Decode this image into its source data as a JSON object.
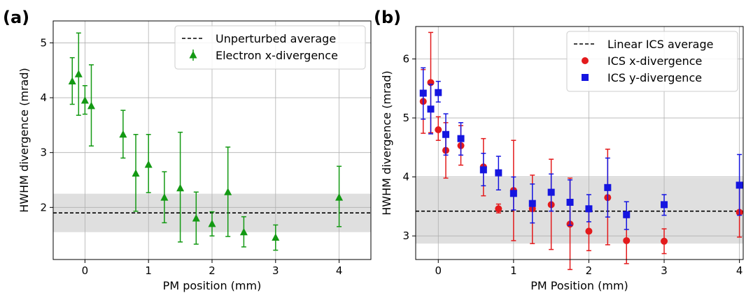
{
  "chart_data": [
    {
      "type": "scatter",
      "panel_label": "(a)",
      "xlabel": "PM position (mm)",
      "ylabel": "HWHM divergence (mrad)",
      "xlim": [
        -0.5,
        4.5
      ],
      "ylim": [
        1.05,
        5.4
      ],
      "xticks": [
        0,
        1,
        2,
        3,
        4
      ],
      "yticks": [
        2,
        3,
        4,
        5
      ],
      "grid": true,
      "legend_position": "top-right",
      "reference_line": {
        "name": "Unperturbed average",
        "y": 1.9,
        "band": [
          1.55,
          2.25
        ],
        "style": "dashed",
        "color": "#000000"
      },
      "series": [
        {
          "name": "Electron x-divergence",
          "marker": "triangle",
          "color": "#139913",
          "x": [
            -0.2,
            -0.1,
            0.0,
            0.1,
            0.6,
            0.8,
            1.0,
            1.25,
            1.5,
            1.75,
            2.0,
            2.25,
            2.5,
            3.0,
            4.0
          ],
          "y": [
            4.3,
            4.43,
            3.95,
            3.85,
            3.33,
            2.62,
            2.78,
            2.18,
            2.35,
            1.8,
            1.7,
            2.28,
            1.55,
            1.45,
            2.18
          ],
          "err_low": [
            3.88,
            3.68,
            3.7,
            3.12,
            2.9,
            1.93,
            2.27,
            1.72,
            1.37,
            1.33,
            1.48,
            1.47,
            1.28,
            1.22,
            1.65
          ],
          "err_high": [
            4.73,
            5.18,
            4.22,
            4.6,
            3.77,
            3.33,
            3.33,
            2.65,
            3.37,
            2.28,
            1.92,
            3.1,
            1.83,
            1.68,
            2.75
          ]
        }
      ]
    },
    {
      "type": "scatter",
      "panel_label": "(b)",
      "xlabel": "PM Position (mm)",
      "ylabel": "HWHM divergence (mrad)",
      "xlim": [
        -0.3,
        4.05
      ],
      "ylim": [
        2.6,
        6.55
      ],
      "xticks": [
        0,
        1,
        2,
        3,
        4
      ],
      "yticks": [
        3,
        4,
        5,
        6
      ],
      "grid": true,
      "legend_position": "top-right",
      "reference_line": {
        "name": "Linear ICS average",
        "y": 3.42,
        "band": [
          2.87,
          3.99
        ],
        "style": "dashed",
        "color": "#000000"
      },
      "series": [
        {
          "name": "ICS x-divergence",
          "marker": "circle",
          "color": "#e31a1c",
          "x": [
            -0.2,
            -0.1,
            0.0,
            0.1,
            0.3,
            0.6,
            0.8,
            1.0,
            1.25,
            1.5,
            1.75,
            2.0,
            2.25,
            2.5,
            3.0,
            4.0
          ],
          "y": [
            5.28,
            5.6,
            4.8,
            4.45,
            4.53,
            4.17,
            3.46,
            3.77,
            3.46,
            3.53,
            3.2,
            3.08,
            3.65,
            2.92,
            2.91,
            3.4
          ],
          "err_low": [
            4.74,
            4.75,
            4.62,
            3.98,
            4.2,
            3.68,
            3.39,
            2.92,
            2.87,
            2.77,
            2.43,
            2.75,
            2.85,
            2.53,
            2.7,
            2.98
          ],
          "err_high": [
            5.82,
            6.45,
            5.02,
            4.92,
            4.87,
            4.65,
            3.54,
            4.62,
            4.03,
            4.3,
            3.98,
            3.41,
            4.47,
            3.31,
            3.12,
            3.82
          ]
        },
        {
          "name": "ICS y-divergence",
          "marker": "square",
          "color": "#1515e0",
          "x": [
            -0.2,
            -0.1,
            0.0,
            0.1,
            0.3,
            0.6,
            0.8,
            1.0,
            1.25,
            1.5,
            1.75,
            2.0,
            2.25,
            2.5,
            3.0,
            4.0
          ],
          "y": [
            5.42,
            5.15,
            5.43,
            4.72,
            4.65,
            4.12,
            4.07,
            3.72,
            3.55,
            3.74,
            3.57,
            3.46,
            3.82,
            3.36,
            3.53,
            3.86
          ],
          "err_low": [
            4.98,
            4.73,
            5.27,
            4.37,
            4.37,
            3.85,
            3.78,
            3.44,
            3.22,
            3.42,
            3.18,
            3.24,
            3.32,
            3.11,
            3.35,
            3.35
          ],
          "err_high": [
            5.85,
            5.57,
            5.62,
            5.07,
            4.92,
            4.4,
            4.35,
            4.0,
            3.88,
            4.05,
            3.95,
            3.7,
            4.32,
            3.58,
            3.7,
            4.38
          ]
        }
      ]
    }
  ]
}
